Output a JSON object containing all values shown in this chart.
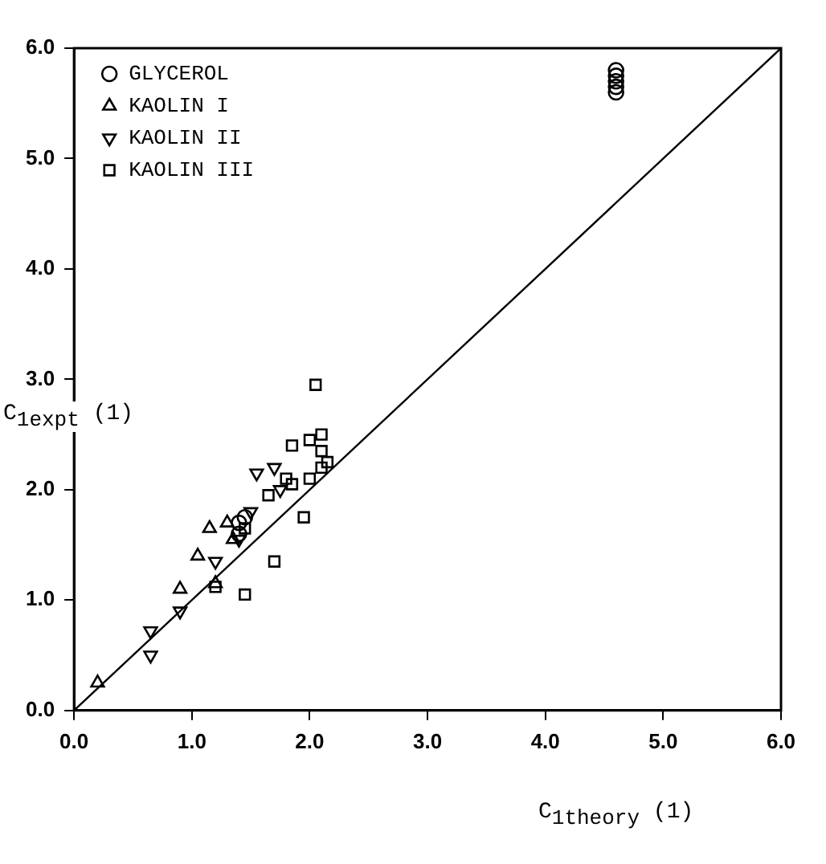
{
  "chart_data": {
    "type": "scatter",
    "xlabel": "C$_{1theory}$ (1)",
    "ylabel": "C$_{1expt}$ (1)",
    "xlim": [
      0,
      6
    ],
    "ylim": [
      0,
      6
    ],
    "xticks": [
      {
        "value": 0,
        "label": "0.0"
      },
      {
        "value": 1,
        "label": "1.0"
      },
      {
        "value": 2,
        "label": "2.0"
      },
      {
        "value": 3,
        "label": "3.0"
      },
      {
        "value": 4,
        "label": "4.0"
      },
      {
        "value": 5,
        "label": "5.0"
      },
      {
        "value": 6,
        "label": "6.0"
      }
    ],
    "yticks": [
      {
        "value": 0,
        "label": "0.0"
      },
      {
        "value": 1,
        "label": "1.0"
      },
      {
        "value": 2,
        "label": "2.0"
      },
      {
        "value": 3,
        "label": "3.0"
      },
      {
        "value": 4,
        "label": "4.0"
      },
      {
        "value": 5,
        "label": "5.0"
      },
      {
        "value": 6,
        "label": "6.0"
      }
    ],
    "legend": "top left",
    "grid": false,
    "series": [
      {
        "name": "GLYCEROL",
        "color": "#000000",
        "marker": "circle",
        "x": [
          4.6,
          4.6,
          4.6,
          4.6,
          4.6,
          1.4,
          1.45,
          1.4
        ],
        "values": [
          5.6,
          5.65,
          5.7,
          5.75,
          5.8,
          1.7,
          1.75,
          1.6
        ]
      },
      {
        "name": "KAOLIN I",
        "color": "#000000",
        "marker": "triangle",
        "x": [
          0.2,
          0.9,
          1.05,
          1.15,
          1.3,
          1.35,
          1.2
        ],
        "values": [
          0.25,
          1.1,
          1.4,
          1.65,
          1.7,
          1.55,
          1.15
        ]
      },
      {
        "name": "KAOLIN II",
        "color": "#000000",
        "marker": "triangle-down",
        "x": [
          0.65,
          0.65,
          0.9,
          1.2,
          1.4,
          1.5,
          1.55,
          1.7,
          1.75
        ],
        "values": [
          0.72,
          0.5,
          0.9,
          1.35,
          1.55,
          1.8,
          2.15,
          2.2,
          2.0
        ]
      },
      {
        "name": "KAOLIN III",
        "color": "#000000",
        "marker": "square",
        "x": [
          1.2,
          1.45,
          1.7,
          1.95,
          2.05,
          1.85,
          2.0,
          2.1,
          2.1,
          2.15,
          2.0,
          1.85,
          1.65,
          2.1,
          1.45,
          1.8
        ],
        "values": [
          1.12,
          1.05,
          1.35,
          1.75,
          2.95,
          2.4,
          2.45,
          2.5,
          2.35,
          2.25,
          2.1,
          2.05,
          1.95,
          2.2,
          1.65,
          2.1
        ]
      },
      {
        "type": "line",
        "color": "#000000",
        "marker": "none",
        "x": [
          0,
          6
        ],
        "values": [
          0,
          6
        ]
      }
    ]
  }
}
